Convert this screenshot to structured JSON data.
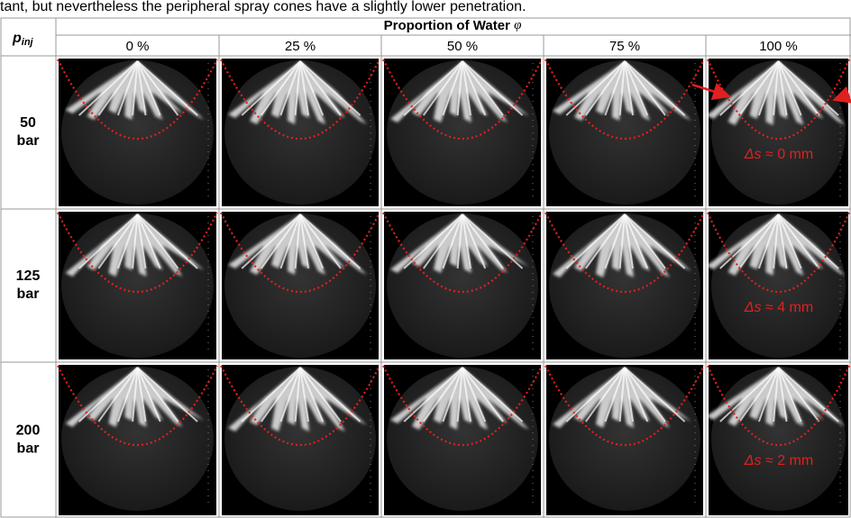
{
  "intro_text": "tant, but nevertheless the peripheral spray cones have a slightly lower penetration.",
  "table": {
    "corner_label": {
      "main": "p",
      "subscript": "inj"
    },
    "group_header": {
      "text": "Proportion of Water",
      "symbol": "φ"
    },
    "columns": [
      "0 %",
      "25 %",
      "50 %",
      "75 %",
      "100 %"
    ],
    "rows": [
      {
        "label": [
          "50",
          "bar"
        ],
        "annotation": {
          "symbol": "Δs",
          "text": "≈ 0 mm"
        }
      },
      {
        "label": [
          "125",
          "bar"
        ],
        "annotation": {
          "symbol": "Δs",
          "text": "≈ 4 mm"
        }
      },
      {
        "label": [
          "200",
          "bar"
        ],
        "annotation": {
          "symbol": "Δs",
          "text": "≈ 2 mm"
        }
      }
    ]
  }
}
